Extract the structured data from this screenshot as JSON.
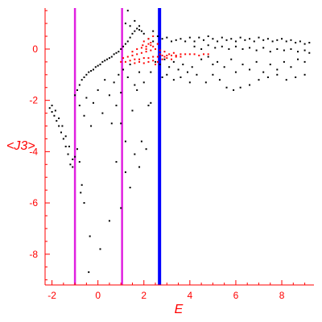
{
  "chart_data": {
    "type": "scatter",
    "xlabel": "E",
    "ylabel": "<J3>",
    "xlim": [
      -2.3,
      9.4
    ],
    "ylim": [
      -9.2,
      1.6
    ],
    "x_ticks": [
      -2,
      0,
      2,
      4,
      6,
      8
    ],
    "y_ticks": [
      0,
      -2,
      -4,
      -6,
      -8
    ],
    "x_tick_labels": [
      "-2",
      "0",
      "2",
      "4",
      "6",
      "8"
    ],
    "y_tick_labels": [
      "0",
      "-2",
      "-4",
      "-6",
      "-8"
    ],
    "axis_color": "#ff0000",
    "vertical_lines": [
      {
        "x": -1.0,
        "color": "#e020e0"
      },
      {
        "x": 1.05,
        "color": "#e020e0"
      },
      {
        "x": 2.68,
        "color": "#0000ff"
      }
    ],
    "series": [
      {
        "color": "#000000",
        "points": [
          [
            -2.1,
            -2.3
          ],
          [
            -2.0,
            -2.45
          ],
          [
            -1.9,
            -2.6
          ],
          [
            -1.8,
            -2.8
          ],
          [
            -1.7,
            -3.0
          ],
          [
            -1.6,
            -3.25
          ],
          [
            -1.5,
            -3.5
          ],
          [
            -1.4,
            -3.8
          ],
          [
            -1.3,
            -4.1
          ],
          [
            -1.2,
            -4.5
          ],
          [
            -2.0,
            -2.2
          ],
          [
            -1.85,
            -2.4
          ],
          [
            -1.7,
            -2.7
          ],
          [
            -1.55,
            -3.0
          ],
          [
            -1.4,
            -3.4
          ],
          [
            -1.25,
            -3.8
          ],
          [
            -1.1,
            -4.3
          ],
          [
            -1.1,
            -4.6
          ],
          [
            -1.0,
            -4.2
          ],
          [
            -0.9,
            -3.9
          ],
          [
            -0.8,
            -4.4
          ],
          [
            -0.7,
            -5.3
          ],
          [
            -0.75,
            -5.6
          ],
          [
            -0.6,
            -6.0
          ],
          [
            -0.4,
            -8.7
          ],
          [
            -0.35,
            -7.3
          ],
          [
            -1.0,
            -1.8
          ],
          [
            -0.9,
            -1.6
          ],
          [
            -0.8,
            -1.4
          ],
          [
            -0.7,
            -1.2
          ],
          [
            -0.6,
            -1.1
          ],
          [
            -0.5,
            -1.0
          ],
          [
            -0.4,
            -0.9
          ],
          [
            -0.3,
            -0.85
          ],
          [
            -0.2,
            -0.8
          ],
          [
            -0.1,
            -0.7
          ],
          [
            0.0,
            -0.65
          ],
          [
            0.1,
            -0.6
          ],
          [
            0.2,
            -0.5
          ],
          [
            0.3,
            -0.45
          ],
          [
            0.4,
            -0.4
          ],
          [
            0.5,
            -0.35
          ],
          [
            0.6,
            -0.3
          ],
          [
            0.7,
            -0.2
          ],
          [
            0.8,
            -0.15
          ],
          [
            0.9,
            -0.1
          ],
          [
            1.0,
            0.0
          ],
          [
            1.1,
            0.1
          ],
          [
            1.2,
            0.2
          ],
          [
            1.3,
            0.3
          ],
          [
            1.4,
            0.45
          ],
          [
            1.5,
            0.6
          ],
          [
            1.6,
            0.7
          ],
          [
            1.7,
            0.8
          ],
          [
            1.8,
            0.75
          ],
          [
            1.9,
            0.7
          ],
          [
            -0.8,
            -2.2
          ],
          [
            -0.6,
            -2.6
          ],
          [
            -0.5,
            -1.9
          ],
          [
            -0.3,
            -3.0
          ],
          [
            -0.2,
            -2.1
          ],
          [
            0.0,
            -1.6
          ],
          [
            0.2,
            -2.5
          ],
          [
            0.3,
            -1.2
          ],
          [
            0.5,
            -1.8
          ],
          [
            0.6,
            -2.9
          ],
          [
            0.7,
            -1.3
          ],
          [
            0.8,
            -2.2
          ],
          [
            0.9,
            -1.0
          ],
          [
            1.0,
            -1.7
          ],
          [
            1.1,
            -0.8
          ],
          [
            1.2,
            -3.6
          ],
          [
            1.3,
            -1.1
          ],
          [
            1.4,
            -0.6
          ],
          [
            1.5,
            -2.4
          ],
          [
            1.6,
            -1.4
          ],
          [
            0.1,
            -7.8
          ],
          [
            0.5,
            -6.7
          ],
          [
            0.8,
            -4.4
          ],
          [
            1.0,
            -6.2
          ],
          [
            1.0,
            -2.9
          ],
          [
            1.2,
            -4.8
          ],
          [
            1.4,
            -5.4
          ],
          [
            1.6,
            -4.1
          ],
          [
            1.8,
            -4.6
          ],
          [
            1.9,
            -3.6
          ],
          [
            2.1,
            -3.9
          ],
          [
            2.3,
            -2.1
          ],
          [
            2.4,
            0.7
          ],
          [
            2.6,
            0.5
          ],
          [
            1.3,
            1.5
          ],
          [
            1.2,
            1.0
          ],
          [
            1.4,
            0.9
          ],
          [
            1.6,
            1.1
          ],
          [
            1.8,
            0.9
          ],
          [
            2.0,
            0.6
          ],
          [
            2.2,
            0.4
          ],
          [
            2.4,
            0.3
          ],
          [
            2.6,
            0.2
          ],
          [
            2.8,
            0.4
          ],
          [
            3.0,
            0.45
          ],
          [
            3.2,
            0.3
          ],
          [
            3.4,
            0.35
          ],
          [
            3.6,
            0.4
          ],
          [
            3.8,
            0.3
          ],
          [
            4.0,
            0.45
          ],
          [
            2.5,
            -0.5
          ],
          [
            2.7,
            -0.6
          ],
          [
            2.9,
            -0.4
          ],
          [
            3.1,
            -0.7
          ],
          [
            3.3,
            -0.5
          ],
          [
            3.5,
            -0.8
          ],
          [
            3.7,
            -0.6
          ],
          [
            3.9,
            -0.9
          ],
          [
            4.1,
            -0.7
          ],
          [
            4.3,
            -1.0
          ],
          [
            4.2,
            0.3
          ],
          [
            4.4,
            0.45
          ],
          [
            4.6,
            0.35
          ],
          [
            4.8,
            0.5
          ],
          [
            5.0,
            0.4
          ],
          [
            5.2,
            0.3
          ],
          [
            5.4,
            0.45
          ],
          [
            5.6,
            0.35
          ],
          [
            5.8,
            0.4
          ],
          [
            6.0,
            0.3
          ],
          [
            6.2,
            0.45
          ],
          [
            6.4,
            0.35
          ],
          [
            6.6,
            0.4
          ],
          [
            6.8,
            0.3
          ],
          [
            7.0,
            0.45
          ],
          [
            7.2,
            0.35
          ],
          [
            7.4,
            0.4
          ],
          [
            7.6,
            0.3
          ],
          [
            7.8,
            0.35
          ],
          [
            8.0,
            0.4
          ],
          [
            8.2,
            0.3
          ],
          [
            8.4,
            0.35
          ],
          [
            8.6,
            0.25
          ],
          [
            8.8,
            0.3
          ],
          [
            9.0,
            0.2
          ],
          [
            9.2,
            0.25
          ],
          [
            4.2,
            0.1
          ],
          [
            4.5,
            0.0
          ],
          [
            4.8,
            0.15
          ],
          [
            5.1,
            0.05
          ],
          [
            5.4,
            0.1
          ],
          [
            5.7,
            0.0
          ],
          [
            6.0,
            0.1
          ],
          [
            6.3,
            0.0
          ],
          [
            6.6,
            0.05
          ],
          [
            6.9,
            -0.05
          ],
          [
            7.2,
            0.05
          ],
          [
            7.5,
            -0.1
          ],
          [
            7.8,
            0.0
          ],
          [
            8.1,
            -0.05
          ],
          [
            8.4,
            0.0
          ],
          [
            8.7,
            -0.1
          ],
          [
            9.0,
            -0.05
          ],
          [
            9.2,
            -0.15
          ],
          [
            4.5,
            -0.4
          ],
          [
            4.8,
            -0.3
          ],
          [
            5.0,
            -0.6
          ],
          [
            5.2,
            -0.5
          ],
          [
            5.5,
            -0.7
          ],
          [
            5.8,
            -0.4
          ],
          [
            6.0,
            -0.9
          ],
          [
            6.3,
            -0.6
          ],
          [
            6.6,
            -0.8
          ],
          [
            6.9,
            -0.5
          ],
          [
            7.2,
            -0.9
          ],
          [
            7.5,
            -0.6
          ],
          [
            7.8,
            -0.8
          ],
          [
            8.1,
            -0.5
          ],
          [
            8.4,
            -0.7
          ],
          [
            8.7,
            -0.4
          ],
          [
            9.0,
            -0.5
          ],
          [
            4.7,
            -1.3
          ],
          [
            5.0,
            -1.0
          ],
          [
            5.3,
            -1.2
          ],
          [
            5.6,
            -1.5
          ],
          [
            5.9,
            -1.6
          ],
          [
            6.2,
            -1.5
          ],
          [
            6.6,
            -1.4
          ],
          [
            7.0,
            -1.2
          ],
          [
            7.4,
            -1.1
          ],
          [
            7.8,
            -1.0
          ],
          [
            8.2,
            -1.2
          ],
          [
            8.6,
            -1.1
          ],
          [
            9.0,
            -1.0
          ],
          [
            3.0,
            -1.0
          ],
          [
            3.3,
            -1.2
          ],
          [
            3.6,
            -1.1
          ],
          [
            4.0,
            -1.3
          ],
          [
            2.8,
            -1.1
          ],
          [
            2.2,
            -2.2
          ],
          [
            2.3,
            -0.9
          ],
          [
            2.0,
            -1.3
          ],
          [
            1.8,
            -0.9
          ],
          [
            1.7,
            -1.6
          ]
        ]
      },
      {
        "color": "#ff0000",
        "points": [
          [
            1.0,
            -0.5
          ],
          [
            1.2,
            -0.5
          ],
          [
            1.4,
            -0.45
          ],
          [
            1.6,
            -0.4
          ],
          [
            1.8,
            -0.4
          ],
          [
            2.0,
            -0.35
          ],
          [
            2.2,
            -0.35
          ],
          [
            2.4,
            -0.3
          ],
          [
            2.6,
            -0.3
          ],
          [
            2.8,
            -0.25
          ],
          [
            3.0,
            -0.25
          ],
          [
            3.2,
            -0.25
          ],
          [
            3.4,
            -0.25
          ],
          [
            3.6,
            -0.2
          ],
          [
            3.8,
            -0.2
          ],
          [
            4.0,
            -0.2
          ],
          [
            4.2,
            -0.2
          ],
          [
            4.4,
            -0.25
          ],
          [
            4.6,
            -0.2
          ],
          [
            4.8,
            -0.2
          ],
          [
            1.1,
            -0.35
          ],
          [
            1.3,
            -0.3
          ],
          [
            1.5,
            -0.25
          ],
          [
            1.7,
            -0.2
          ],
          [
            1.9,
            -0.15
          ],
          [
            2.1,
            -0.1
          ],
          [
            2.3,
            -0.05
          ],
          [
            2.5,
            0.0
          ],
          [
            2.7,
            -0.05
          ],
          [
            2.9,
            -0.1
          ],
          [
            1.5,
            -0.1
          ],
          [
            1.7,
            0.0
          ],
          [
            1.9,
            0.05
          ],
          [
            2.1,
            0.1
          ],
          [
            2.3,
            0.15
          ],
          [
            2.0,
            0.3
          ],
          [
            2.2,
            0.4
          ],
          [
            2.4,
            0.5
          ],
          [
            2.3,
            0.25
          ],
          [
            2.1,
            0.0
          ],
          [
            1.8,
            -0.5
          ],
          [
            2.0,
            -0.55
          ],
          [
            2.2,
            -0.5
          ],
          [
            2.4,
            -0.45
          ],
          [
            2.6,
            -0.5
          ],
          [
            2.8,
            -0.4
          ],
          [
            3.0,
            -0.35
          ],
          [
            3.2,
            -0.4
          ],
          [
            3.4,
            -0.3
          ],
          [
            3.6,
            -0.3
          ],
          [
            1.6,
            -0.55
          ],
          [
            2.5,
            -0.6
          ],
          [
            2.7,
            -0.2
          ],
          [
            2.9,
            -0.3
          ],
          [
            3.1,
            -0.2
          ],
          [
            3.3,
            -0.15
          ],
          [
            2.6,
            0.2
          ],
          [
            2.4,
            0.1
          ],
          [
            2.2,
            0.2
          ],
          [
            1.95,
            0.15
          ]
        ]
      }
    ]
  }
}
